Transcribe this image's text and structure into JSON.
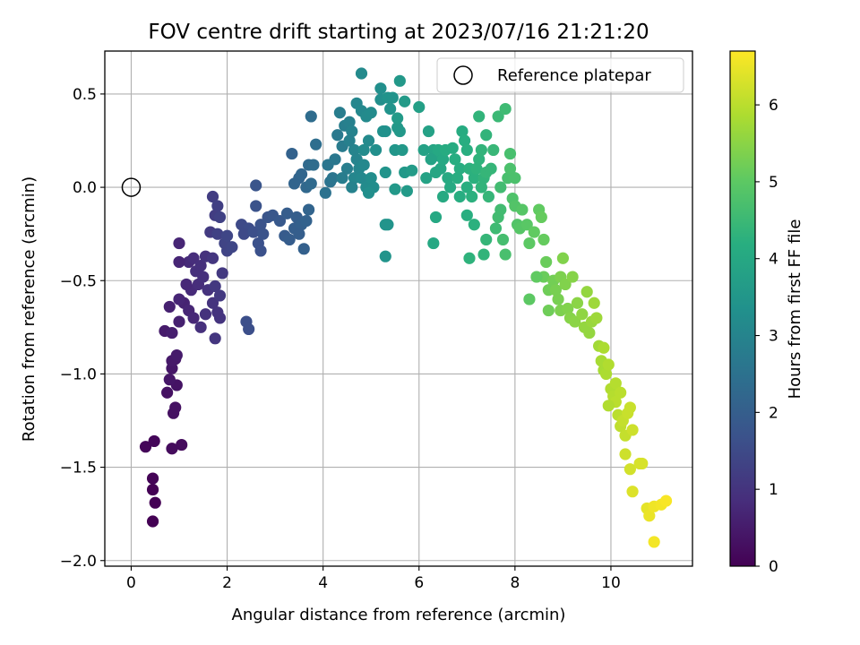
{
  "chart_data": {
    "type": "scatter",
    "title": "FOV centre drift starting at 2023/07/16 21:21:20",
    "xlabel": "Angular distance from reference (arcmin)",
    "ylabel": "Rotation from reference (arcmin)",
    "xlim": [
      -0.55,
      11.7
    ],
    "ylim": [
      -2.03,
      0.73
    ],
    "x_ticks": [
      0,
      2,
      4,
      6,
      8,
      10
    ],
    "x_tick_labels": [
      "0",
      "2",
      "4",
      "6",
      "8",
      "10"
    ],
    "y_ticks": [
      0.5,
      0.0,
      -0.5,
      -1.0,
      -1.5,
      -2.0
    ],
    "y_tick_labels": [
      "0.5",
      "0.0",
      "−0.5",
      "−1.0",
      "−1.5",
      "−2.0"
    ],
    "grid": true,
    "legend": {
      "location": "upper right",
      "entries": [
        {
          "label": "Reference platepar",
          "marker": "open-circle"
        }
      ]
    },
    "reference_point": {
      "x": 0,
      "y": 0
    },
    "colorbar": {
      "label": "Hours from first FF file",
      "colormap": "viridis",
      "range": [
        0,
        6.7
      ],
      "ticks": [
        0,
        1,
        2,
        3,
        4,
        5,
        6
      ],
      "tick_labels": [
        "0",
        "1",
        "2",
        "3",
        "4",
        "5",
        "6"
      ]
    },
    "points": [
      [
        0.45,
        -1.79,
        0.0
      ],
      [
        0.5,
        -1.69,
        0.0
      ],
      [
        0.45,
        -1.62,
        0.0
      ],
      [
        0.45,
        -1.56,
        0.05
      ],
      [
        0.3,
        -1.39,
        0.1
      ],
      [
        0.48,
        -1.36,
        0.1
      ],
      [
        0.85,
        -1.4,
        0.2
      ],
      [
        1.05,
        -1.38,
        0.2
      ],
      [
        0.88,
        -1.21,
        0.3
      ],
      [
        0.92,
        -1.18,
        0.3
      ],
      [
        0.75,
        -1.1,
        0.3
      ],
      [
        0.95,
        -1.06,
        0.35
      ],
      [
        0.8,
        -1.03,
        0.4
      ],
      [
        0.85,
        -0.97,
        0.4
      ],
      [
        0.92,
        -0.92,
        0.45
      ],
      [
        0.85,
        -0.93,
        0.45
      ],
      [
        0.95,
        -0.9,
        0.5
      ],
      [
        0.7,
        -0.77,
        0.5
      ],
      [
        0.85,
        -0.78,
        0.55
      ],
      [
        1.0,
        -0.72,
        0.6
      ],
      [
        0.8,
        -0.64,
        0.6
      ],
      [
        1.1,
        -0.62,
        0.65
      ],
      [
        1.0,
        -0.6,
        0.7
      ],
      [
        1.2,
        -0.66,
        0.7
      ],
      [
        1.3,
        -0.7,
        0.75
      ],
      [
        1.25,
        -0.55,
        0.8
      ],
      [
        1.4,
        -0.52,
        0.85
      ],
      [
        1.35,
        -0.45,
        0.9
      ],
      [
        1.5,
        -0.48,
        0.9
      ],
      [
        1.6,
        -0.55,
        0.95
      ],
      [
        1.7,
        -0.62,
        1.0
      ],
      [
        1.55,
        -0.68,
        0.95
      ],
      [
        1.45,
        -0.75,
        0.9
      ],
      [
        1.85,
        -0.7,
        1.0
      ],
      [
        1.75,
        -0.81,
        1.05
      ],
      [
        1.8,
        -0.67,
        1.0
      ],
      [
        1.2,
        -0.4,
        0.8
      ],
      [
        1.3,
        -0.38,
        0.85
      ],
      [
        1.45,
        -0.42,
        0.9
      ],
      [
        1.55,
        -0.37,
        0.95
      ],
      [
        1.7,
        -0.38,
        1.05
      ],
      [
        1.9,
        -0.46,
        1.1
      ],
      [
        1.75,
        -0.53,
        1.1
      ],
      [
        1.85,
        -0.58,
        1.1
      ],
      [
        1.0,
        -0.3,
        0.7
      ],
      [
        1.0,
        -0.4,
        0.7
      ],
      [
        1.15,
        -0.52,
        0.75
      ],
      [
        1.65,
        -0.24,
        1.15
      ],
      [
        1.75,
        -0.15,
        1.2
      ],
      [
        1.7,
        -0.05,
        1.2
      ],
      [
        1.8,
        -0.1,
        1.25
      ],
      [
        1.85,
        -0.16,
        1.3
      ],
      [
        1.8,
        -0.25,
        1.3
      ],
      [
        1.95,
        -0.3,
        1.35
      ],
      [
        2.0,
        -0.34,
        1.35
      ],
      [
        2.1,
        -0.32,
        1.4
      ],
      [
        2.0,
        -0.26,
        1.4
      ],
      [
        2.3,
        -0.2,
        1.5
      ],
      [
        2.45,
        -0.22,
        1.55
      ],
      [
        2.35,
        -0.25,
        1.5
      ],
      [
        2.55,
        -0.24,
        1.6
      ],
      [
        2.65,
        -0.3,
        1.65
      ],
      [
        2.7,
        -0.2,
        1.7
      ],
      [
        2.75,
        -0.25,
        1.7
      ],
      [
        2.85,
        -0.16,
        1.75
      ],
      [
        2.95,
        -0.15,
        1.8
      ],
      [
        2.7,
        -0.34,
        1.65
      ],
      [
        2.6,
        -0.1,
        1.7
      ],
      [
        2.6,
        0.01,
        1.75
      ],
      [
        2.4,
        -0.72,
        1.6
      ],
      [
        2.45,
        -0.76,
        1.6
      ],
      [
        3.1,
        -0.18,
        1.85
      ],
      [
        3.2,
        -0.26,
        1.9
      ],
      [
        3.3,
        -0.28,
        1.95
      ],
      [
        3.4,
        -0.22,
        2.0
      ],
      [
        3.25,
        -0.14,
        1.95
      ],
      [
        3.45,
        -0.16,
        2.0
      ],
      [
        3.55,
        -0.2,
        2.05
      ],
      [
        3.65,
        -0.18,
        2.1
      ],
      [
        3.7,
        -0.12,
        2.15
      ],
      [
        3.5,
        -0.25,
        2.0
      ],
      [
        3.6,
        -0.33,
        2.05
      ],
      [
        3.35,
        0.18,
        2.1
      ],
      [
        3.4,
        0.02,
        2.15
      ],
      [
        3.5,
        0.05,
        2.15
      ],
      [
        3.55,
        0.07,
        2.2
      ],
      [
        3.65,
        0.0,
        2.25
      ],
      [
        3.75,
        0.02,
        2.3
      ],
      [
        3.7,
        0.12,
        2.3
      ],
      [
        3.8,
        0.12,
        2.35
      ],
      [
        3.75,
        0.38,
        2.35
      ],
      [
        3.85,
        0.23,
        2.4
      ],
      [
        4.05,
        -0.03,
        2.5
      ],
      [
        4.15,
        0.03,
        2.55
      ],
      [
        4.1,
        0.12,
        2.6
      ],
      [
        4.2,
        0.05,
        2.6
      ],
      [
        4.25,
        0.15,
        2.65
      ],
      [
        4.3,
        0.28,
        2.7
      ],
      [
        4.4,
        0.22,
        2.75
      ],
      [
        4.35,
        0.4,
        2.8
      ],
      [
        4.45,
        0.33,
        2.85
      ],
      [
        4.55,
        0.35,
        2.9
      ],
      [
        4.6,
        0.3,
        2.95
      ],
      [
        4.65,
        0.2,
        3.0
      ],
      [
        4.7,
        0.15,
        3.0
      ],
      [
        4.75,
        0.1,
        3.05
      ],
      [
        4.65,
        0.05,
        3.05
      ],
      [
        4.8,
        0.05,
        3.1
      ],
      [
        4.85,
        0.12,
        3.1
      ],
      [
        4.7,
        0.45,
        3.05
      ],
      [
        4.8,
        0.41,
        3.1
      ],
      [
        4.9,
        0.38,
        3.15
      ],
      [
        4.95,
        0.25,
        3.15
      ],
      [
        4.85,
        0.2,
        3.2
      ],
      [
        4.9,
        0.0,
        3.2
      ],
      [
        5.0,
        0.05,
        3.25
      ],
      [
        5.05,
        0.0,
        3.25
      ],
      [
        4.95,
        -0.03,
        3.3
      ],
      [
        4.8,
        0.61,
        3.15
      ],
      [
        5.0,
        0.4,
        3.2
      ],
      [
        5.2,
        0.47,
        3.3
      ],
      [
        5.25,
        0.3,
        3.35
      ],
      [
        5.3,
        0.3,
        3.35
      ],
      [
        5.2,
        0.53,
        3.3
      ],
      [
        5.35,
        0.48,
        3.4
      ],
      [
        5.45,
        0.48,
        3.4
      ],
      [
        5.3,
        0.08,
        3.45
      ],
      [
        5.3,
        -0.2,
        3.45
      ],
      [
        5.35,
        -0.2,
        3.45
      ],
      [
        5.3,
        -0.37,
        3.45
      ],
      [
        5.5,
        0.2,
        3.5
      ],
      [
        5.55,
        0.32,
        3.55
      ],
      [
        5.6,
        0.3,
        3.55
      ],
      [
        5.65,
        0.2,
        3.55
      ],
      [
        5.7,
        0.08,
        3.55
      ],
      [
        5.55,
        0.37,
        3.6
      ],
      [
        5.7,
        0.46,
        3.6
      ],
      [
        5.6,
        0.57,
        3.55
      ],
      [
        5.5,
        -0.01,
        3.55
      ],
      [
        5.75,
        -0.02,
        3.6
      ],
      [
        5.85,
        0.09,
        3.65
      ],
      [
        6.0,
        0.43,
        3.75
      ],
      [
        6.2,
        0.3,
        3.8
      ],
      [
        6.3,
        0.2,
        3.9
      ],
      [
        6.35,
        0.17,
        3.9
      ],
      [
        6.25,
        0.15,
        3.85
      ],
      [
        6.35,
        0.08,
        3.95
      ],
      [
        6.45,
        0.1,
        3.95
      ],
      [
        6.4,
        0.2,
        4.0
      ],
      [
        6.5,
        0.15,
        4.0
      ],
      [
        6.6,
        0.05,
        4.05
      ],
      [
        6.5,
        -0.05,
        4.05
      ],
      [
        6.65,
        0.0,
        4.05
      ],
      [
        6.55,
        0.2,
        4.1
      ],
      [
        6.7,
        0.21,
        4.1
      ],
      [
        6.75,
        0.15,
        4.15
      ],
      [
        6.8,
        0.05,
        4.15
      ],
      [
        6.85,
        0.1,
        4.15
      ],
      [
        6.9,
        0.3,
        4.1
      ],
      [
        6.95,
        0.25,
        4.15
      ],
      [
        7.0,
        0.2,
        4.2
      ],
      [
        7.0,
        0.0,
        4.2
      ],
      [
        7.05,
        0.1,
        4.25
      ],
      [
        7.1,
        -0.05,
        4.25
      ],
      [
        7.15,
        0.05,
        4.25
      ],
      [
        7.2,
        0.1,
        4.3
      ],
      [
        7.25,
        0.15,
        4.3
      ],
      [
        7.3,
        0.2,
        4.35
      ],
      [
        7.3,
        0.0,
        4.35
      ],
      [
        7.35,
        0.05,
        4.35
      ],
      [
        7.4,
        0.08,
        4.4
      ],
      [
        7.45,
        -0.05,
        4.4
      ],
      [
        7.5,
        0.1,
        4.4
      ],
      [
        7.55,
        0.2,
        4.45
      ],
      [
        7.25,
        0.38,
        4.35
      ],
      [
        7.4,
        0.28,
        4.35
      ],
      [
        7.65,
        0.38,
        4.5
      ],
      [
        7.8,
        0.42,
        4.55
      ],
      [
        7.05,
        -0.38,
        4.3
      ],
      [
        7.35,
        -0.36,
        4.35
      ],
      [
        6.3,
        -0.3,
        4.0
      ],
      [
        6.35,
        -0.16,
        4.0
      ],
      [
        7.6,
        -0.22,
        4.55
      ],
      [
        7.65,
        -0.16,
        4.6
      ],
      [
        7.7,
        -0.12,
        4.6
      ],
      [
        7.75,
        -0.28,
        4.65
      ],
      [
        7.8,
        -0.36,
        4.7
      ],
      [
        7.85,
        0.05,
        4.7
      ],
      [
        7.9,
        0.1,
        4.75
      ],
      [
        7.95,
        -0.06,
        4.8
      ],
      [
        8.0,
        -0.1,
        4.85
      ],
      [
        8.05,
        -0.2,
        4.85
      ],
      [
        8.1,
        -0.22,
        4.9
      ],
      [
        8.15,
        -0.12,
        4.9
      ],
      [
        8.25,
        -0.2,
        4.95
      ],
      [
        8.3,
        -0.3,
        5.0
      ],
      [
        8.4,
        -0.24,
        5.05
      ],
      [
        8.5,
        -0.12,
        5.05
      ],
      [
        8.55,
        -0.16,
        5.1
      ],
      [
        8.6,
        -0.28,
        5.1
      ],
      [
        8.65,
        -0.4,
        5.15
      ],
      [
        8.6,
        -0.48,
        5.15
      ],
      [
        8.7,
        -0.55,
        5.2
      ],
      [
        8.8,
        -0.5,
        5.25
      ],
      [
        8.85,
        -0.55,
        5.3
      ],
      [
        8.9,
        -0.6,
        5.3
      ],
      [
        8.95,
        -0.48,
        5.35
      ],
      [
        8.95,
        -0.66,
        5.35
      ],
      [
        9.05,
        -0.52,
        5.4
      ],
      [
        9.1,
        -0.65,
        5.4
      ],
      [
        9.15,
        -0.7,
        5.45
      ],
      [
        9.25,
        -0.72,
        5.5
      ],
      [
        9.3,
        -0.62,
        5.5
      ],
      [
        9.4,
        -0.68,
        5.55
      ],
      [
        9.45,
        -0.75,
        5.6
      ],
      [
        9.55,
        -0.78,
        5.6
      ],
      [
        9.6,
        -0.72,
        5.65
      ],
      [
        9.5,
        -0.56,
        5.6
      ],
      [
        9.65,
        -0.62,
        5.7
      ],
      [
        9.7,
        -0.7,
        5.7
      ],
      [
        9.75,
        -0.85,
        5.75
      ],
      [
        9.8,
        -0.93,
        5.8
      ],
      [
        9.85,
        -0.98,
        5.8
      ],
      [
        9.9,
        -1.0,
        5.85
      ],
      [
        9.95,
        -0.95,
        5.9
      ],
      [
        10.0,
        -1.08,
        5.9
      ],
      [
        10.05,
        -1.12,
        5.95
      ],
      [
        10.1,
        -1.15,
        6.0
      ],
      [
        10.15,
        -1.22,
        6.0
      ],
      [
        10.2,
        -1.28,
        6.05
      ],
      [
        10.25,
        -1.25,
        6.1
      ],
      [
        10.3,
        -1.33,
        6.1
      ],
      [
        10.35,
        -1.21,
        6.15
      ],
      [
        10.4,
        -1.18,
        6.15
      ],
      [
        10.45,
        -1.3,
        6.2
      ],
      [
        10.3,
        -1.43,
        6.2
      ],
      [
        10.4,
        -1.51,
        6.25
      ],
      [
        10.6,
        -1.48,
        6.3
      ],
      [
        10.65,
        -1.48,
        6.3
      ],
      [
        10.45,
        -1.63,
        6.35
      ],
      [
        10.75,
        -1.72,
        6.45
      ],
      [
        10.8,
        -1.76,
        6.5
      ],
      [
        10.9,
        -1.71,
        6.55
      ],
      [
        11.05,
        -1.7,
        6.6
      ],
      [
        11.15,
        -1.68,
        6.65
      ],
      [
        10.9,
        -1.9,
        6.6
      ],
      [
        8.3,
        -0.6,
        5.0
      ],
      [
        8.45,
        -0.48,
        5.05
      ],
      [
        8.7,
        -0.66,
        5.2
      ],
      [
        9.0,
        -0.38,
        5.4
      ],
      [
        9.2,
        -0.48,
        5.45
      ],
      [
        9.85,
        -0.86,
        5.85
      ],
      [
        9.95,
        -1.17,
        5.9
      ],
      [
        10.1,
        -1.05,
        5.95
      ],
      [
        10.2,
        -1.1,
        6.0
      ],
      [
        7.9,
        0.18,
        4.7
      ],
      [
        8.0,
        0.05,
        4.75
      ],
      [
        7.7,
        0.0,
        4.6
      ],
      [
        6.1,
        0.2,
        3.8
      ],
      [
        6.15,
        0.05,
        3.85
      ],
      [
        6.85,
        -0.05,
        4.15
      ],
      [
        7.0,
        -0.15,
        4.2
      ],
      [
        7.15,
        -0.2,
        4.25
      ],
      [
        7.4,
        -0.28,
        4.4
      ],
      [
        4.5,
        0.1,
        2.85
      ],
      [
        4.55,
        0.25,
        2.9
      ],
      [
        4.6,
        0.0,
        2.95
      ],
      [
        4.4,
        0.05,
        2.8
      ],
      [
        5.1,
        0.2,
        3.3
      ],
      [
        5.4,
        0.42,
        3.4
      ]
    ]
  }
}
